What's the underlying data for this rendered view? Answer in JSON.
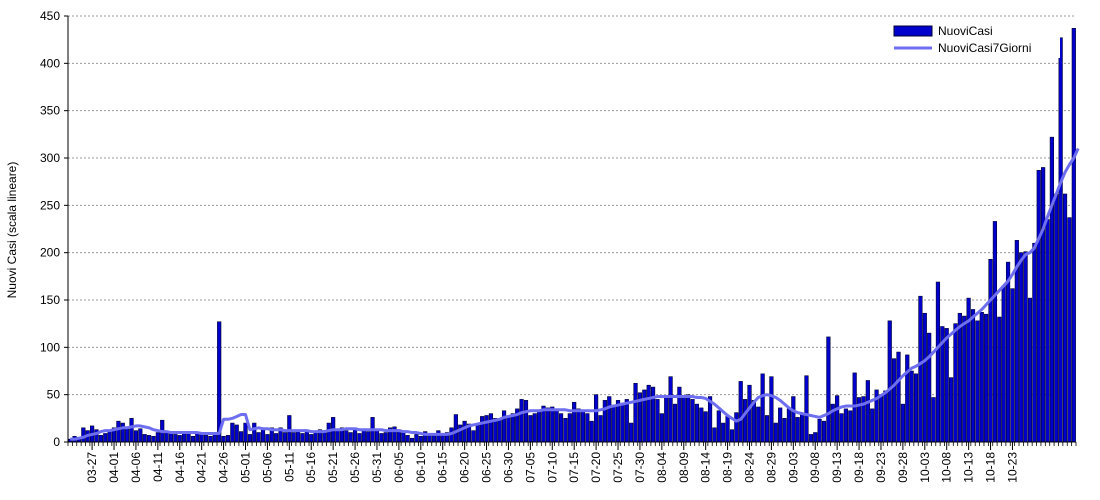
{
  "chart_data": {
    "type": "bar",
    "ylabel": "Nuovi Casi (scala lineare)",
    "xlabel": "",
    "title": "",
    "ylim": [
      0,
      450
    ],
    "yticks": [
      0,
      50,
      100,
      150,
      200,
      250,
      300,
      350,
      400,
      450
    ],
    "grid": "horizontal dotted",
    "legend_position": "top-right",
    "x_tick_labels": [
      "03-27",
      "04-01",
      "04-06",
      "04-11",
      "04-16",
      "04-21",
      "04-26",
      "05-01",
      "05-06",
      "05-11",
      "05-16",
      "05-21",
      "05-26",
      "05-31",
      "06-05",
      "06-10",
      "06-15",
      "06-20",
      "06-25",
      "06-30",
      "07-05",
      "07-10",
      "07-15",
      "07-20",
      "07-25",
      "07-30",
      "08-04",
      "08-09",
      "08-14",
      "08-19",
      "08-24",
      "08-29",
      "09-03",
      "09-08",
      "09-13",
      "09-18",
      "09-23",
      "09-28",
      "10-03",
      "10-08",
      "10-13",
      "10-18",
      "10-23"
    ],
    "colors": {
      "bars": "#0000cc",
      "bar_edge": "#000033",
      "line": "#6e6ef0"
    },
    "series": [
      {
        "name": "NuoviCasi",
        "type": "bar",
        "values": [
          3,
          6,
          5,
          15,
          12,
          17,
          13,
          7,
          9,
          12,
          15,
          22,
          20,
          15,
          25,
          12,
          14,
          8,
          7,
          6,
          10,
          23,
          10,
          10,
          8,
          7,
          9,
          10,
          6,
          10,
          8,
          7,
          6,
          9,
          127,
          6,
          7,
          20,
          18,
          11,
          20,
          8,
          20,
          10,
          14,
          8,
          15,
          9,
          15,
          10,
          28,
          10,
          12,
          9,
          11,
          8,
          10,
          13,
          12,
          20,
          26,
          13,
          15,
          12,
          10,
          15,
          9,
          13,
          11,
          26,
          12,
          9,
          10,
          15,
          16,
          13,
          10,
          7,
          4,
          8,
          6,
          11,
          7,
          9,
          12,
          8,
          10,
          15,
          29,
          18,
          22,
          19,
          12,
          18,
          27,
          28,
          30,
          25,
          23,
          33,
          27,
          30,
          35,
          45,
          44,
          28,
          30,
          32,
          38,
          36,
          37,
          35,
          30,
          25,
          30,
          42,
          35,
          32,
          30,
          22,
          50,
          28,
          44,
          48,
          39,
          44,
          41,
          45,
          20,
          62,
          52,
          55,
          60,
          58,
          45,
          30,
          48,
          69,
          40,
          58,
          47,
          50,
          45,
          40,
          36,
          32,
          48,
          15,
          33,
          20,
          27,
          13,
          31,
          64,
          45,
          60,
          44,
          37,
          72,
          28,
          69,
          20,
          36,
          25,
          35,
          48,
          26,
          30,
          70,
          8,
          10,
          24,
          22,
          111,
          40,
          49,
          30,
          35,
          33,
          73,
          47,
          48,
          65,
          35,
          55,
          50,
          54,
          128,
          88,
          95,
          40,
          92,
          75,
          72,
          154,
          136,
          115,
          47,
          169,
          122,
          120,
          68,
          125,
          136,
          133,
          152,
          140,
          128,
          137,
          135,
          193,
          233,
          132,
          165,
          190,
          162,
          213,
          200,
          201,
          152,
          210,
          287,
          290,
          235,
          322,
          262,
          427,
          262,
          237,
          437
        ]
      },
      {
        "name": "NuoviCasi7Giorni",
        "type": "line",
        "values": [
          3,
          3,
          4,
          5,
          7,
          8,
          9,
          11,
          12,
          12,
          13,
          14,
          15,
          15,
          16,
          17,
          17,
          16,
          15,
          13,
          12,
          11,
          11,
          10,
          10,
          10,
          10,
          10,
          10,
          10,
          9,
          9,
          9,
          9,
          9,
          24,
          24,
          25,
          27,
          29,
          29,
          13,
          14,
          15,
          14,
          14,
          13,
          13,
          13,
          12,
          12,
          12,
          12,
          12,
          12,
          11,
          11,
          11,
          11,
          12,
          13,
          13,
          13,
          14,
          14,
          14,
          13,
          13,
          13,
          13,
          13,
          13,
          12,
          12,
          12,
          12,
          11,
          11,
          10,
          10,
          9,
          8,
          8,
          8,
          8,
          8,
          8,
          9,
          11,
          13,
          15,
          17,
          18,
          19,
          20,
          21,
          22,
          23,
          24,
          26,
          27,
          28,
          29,
          31,
          32,
          33,
          33,
          33,
          34,
          34,
          34,
          34,
          34,
          34,
          33,
          33,
          33,
          33,
          33,
          33,
          33,
          34,
          35,
          37,
          38,
          39,
          40,
          41,
          42,
          43,
          44,
          45,
          46,
          47,
          48,
          48,
          48,
          48,
          48,
          48,
          48,
          48,
          48,
          47,
          47,
          46,
          43,
          40,
          36,
          32,
          28,
          25,
          22,
          24,
          30,
          36,
          42,
          47,
          49,
          50,
          49,
          47,
          44,
          40,
          36,
          33,
          31,
          30,
          29,
          28,
          27,
          26,
          28,
          30,
          33,
          35,
          37,
          38,
          38,
          38,
          39,
          40,
          42,
          44,
          46,
          49,
          52,
          56,
          60,
          65,
          70,
          74,
          78,
          80,
          83,
          86,
          90,
          95,
          100,
          105,
          110,
          114,
          118,
          122,
          125,
          128,
          132,
          136,
          140,
          145,
          150,
          155,
          160,
          165,
          170,
          177,
          185,
          192,
          198,
          200,
          205,
          215,
          225,
          238,
          250,
          262,
          274,
          285,
          293,
          300,
          310
        ]
      }
    ]
  }
}
